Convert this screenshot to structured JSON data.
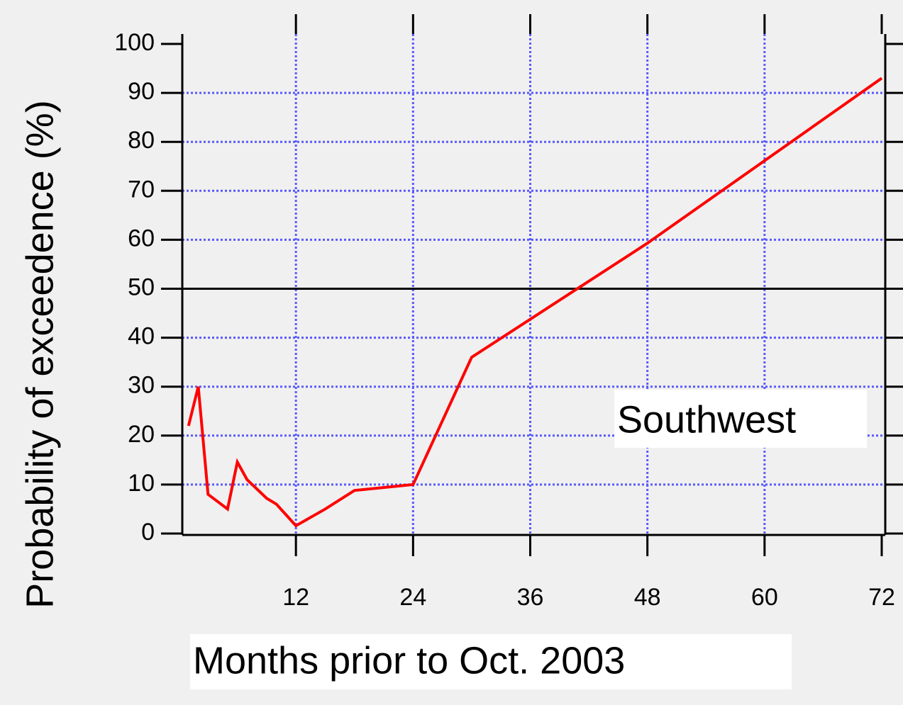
{
  "chart_data": {
    "type": "line",
    "x_label": "Months prior to Oct. 2003",
    "y_label": "Probability of exceedence (%)",
    "annotation": "Southwest",
    "series": [
      {
        "name": "Southwest",
        "color": "#ff0000",
        "x": [
          1,
          2,
          3,
          4,
          5,
          6,
          7,
          9,
          10,
          11,
          12,
          15,
          18,
          24,
          30,
          48,
          72
        ],
        "values": [
          22,
          30,
          8,
          6.5,
          5,
          14.6,
          11,
          7.2,
          6,
          3.8,
          1.6,
          5,
          8.8,
          10,
          36,
          59.3,
          93
        ]
      }
    ],
    "xlim": [
      0,
      72
    ],
    "xticks": [
      12,
      24,
      36,
      48,
      60,
      72
    ],
    "ylim": [
      0,
      100
    ],
    "yticks": [
      0,
      10,
      20,
      30,
      40,
      50,
      60,
      70,
      80,
      90,
      100
    ],
    "reference_line": 50,
    "grid": true,
    "grid_color": "#5a5aff"
  }
}
